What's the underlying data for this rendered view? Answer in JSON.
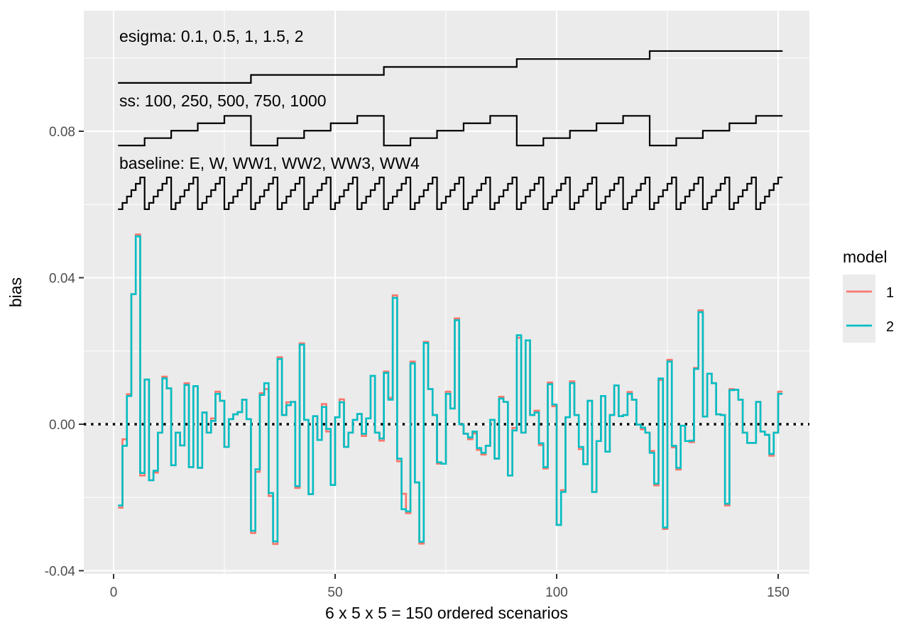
{
  "chart": {
    "panel_bg": "#EBEBEB",
    "grid_color": "#FFFFFF",
    "axis_text_color": "#4D4D4D",
    "tick_mark_color": "#333333",
    "x_axis": {
      "title": "6 x 5 x 5 = 150 ordered scenarios",
      "tick_labels": [
        "0",
        "50",
        "100",
        "150"
      ],
      "tick_values": [
        0,
        50,
        100,
        150
      ],
      "minor_tick_values": [
        25,
        75,
        125
      ]
    },
    "y_axis": {
      "title": "bias",
      "tick_labels": [
        "0.08",
        "0.04",
        "0.00",
        "-0.04"
      ],
      "tick_values": [
        0.08,
        0.04,
        0.0,
        -0.04
      ],
      "minor_tick_values": [
        0.1,
        0.06,
        0.02,
        -0.02
      ]
    },
    "zero_line": {
      "value": 0,
      "style": "dotted",
      "color": "#000000"
    }
  },
  "legend": {
    "title": "model",
    "key_fill": "#EBEBEB",
    "items": [
      {
        "label": "1",
        "color": "#F8766D"
      },
      {
        "label": "2",
        "color": "#00BFC4"
      }
    ]
  },
  "annotations": [
    {
      "label": "esigma: 0.1, 0.5, 1, 1.5, 2",
      "levels": 5,
      "scenarios_per_level": 30,
      "band_min": 0.0932,
      "band_max": 0.1019
    },
    {
      "label": "ss: 100, 250, 500, 750, 1000",
      "levels": 5,
      "scenarios_per_level": 6,
      "band_min": 0.0761,
      "band_max": 0.0842
    },
    {
      "label": "baseline: E, W, WW1, WW2, WW3, WW4",
      "levels": 6,
      "scenarios_per_level": 1,
      "band_min": 0.0587,
      "band_max": 0.0674
    }
  ],
  "chart_data": {
    "type": "line",
    "step": true,
    "title": "",
    "xlabel": "6 x 5 x 5 = 150 ordered scenarios",
    "ylabel": "bias",
    "x_range": [
      1,
      150
    ],
    "ylim": [
      -0.041,
      0.113
    ],
    "grid": true,
    "legend_position": "right",
    "series": [
      {
        "name": "1",
        "color": "#F8766D",
        "base_series": "2",
        "overrides": {
          "1": -0.0228,
          "2": -0.0041,
          "3": 0.0082,
          "5": 0.0518,
          "6": -0.014,
          "9": -0.0132,
          "11": 0.013,
          "16": 0.0112,
          "22": 0.0016,
          "23": 0.0089,
          "31": -0.0297,
          "32": -0.013,
          "33": 0.0085,
          "34": 0.0096,
          "35": -0.0196,
          "36": -0.0327,
          "37": 0.0183,
          "39": 0.006,
          "41": -0.0174,
          "42": 0.0221,
          "47": 0.0055,
          "48": -0.002,
          "51": 0.0068,
          "56": -0.0032,
          "60": -0.0045,
          "61": 0.0144,
          "62": 0.0072,
          "63": 0.0352,
          "64": -0.0101,
          "65": -0.019,
          "66": -0.0243,
          "67": 0.0171,
          "69": -0.0326,
          "70": 0.0225,
          "73": -0.0108,
          "75": 0.0089,
          "77": 0.0289,
          "80": -0.0041,
          "81": -0.0025,
          "82": -0.007,
          "83": -0.0083,
          "87": 0.0075,
          "90": -0.001,
          "91": 0.0236,
          "95": 0.0037,
          "96": -0.0057,
          "97": -0.0121,
          "98": 0.0114,
          "99": 0.0049,
          "101": -0.018,
          "103": 0.0117,
          "105": -0.0068,
          "116": 0.0088,
          "119": -0.0014,
          "121": -0.0073,
          "122": -0.0167,
          "123": 0.0121,
          "124": -0.0286,
          "125": 0.0176,
          "126": -0.0063,
          "127": -0.0124,
          "130": -0.0049,
          "131": 0.0154,
          "132": 0.0311,
          "138": -0.0222,
          "139": 0.0096,
          "148": -0.0086,
          "150": 0.0089
        }
      },
      {
        "name": "2",
        "color": "#00BFC4",
        "values": [
          -0.0222,
          -0.0059,
          0.0077,
          0.0355,
          0.0513,
          -0.0133,
          0.0122,
          -0.0153,
          -0.0127,
          -0.0023,
          0.0125,
          0.0098,
          -0.0112,
          -0.0023,
          -0.0058,
          0.0107,
          -0.0117,
          0.0104,
          -0.0119,
          0.0032,
          -0.0023,
          0.0009,
          0.0083,
          0.0064,
          -0.0062,
          0.0014,
          0.0027,
          0.0033,
          0.0067,
          0.0014,
          -0.0291,
          -0.0123,
          0.008,
          0.0112,
          -0.0188,
          -0.032,
          0.0178,
          0.0025,
          0.0052,
          0.0061,
          -0.0169,
          0.0217,
          0.0012,
          -0.0191,
          0.0022,
          -0.0043,
          0.0047,
          -0.0013,
          -0.0166,
          0.0019,
          0.006,
          -0.0062,
          -0.0023,
          0.0012,
          0.0028,
          -0.0026,
          0.0016,
          0.0132,
          -0.0023,
          -0.0039,
          0.014,
          0.0067,
          0.0345,
          -0.0094,
          -0.0232,
          -0.0238,
          0.0166,
          -0.0159,
          -0.0321,
          0.0222,
          0.0096,
          0.0025,
          -0.0104,
          -0.0108,
          0.0083,
          0.0043,
          0.0284,
          0.0,
          -0.0026,
          -0.0036,
          -0.002,
          -0.0065,
          -0.0078,
          -0.0059,
          0.0012,
          -0.0094,
          0.007,
          0.0061,
          -0.014,
          -0.0017,
          0.0243,
          -0.0023,
          0.0229,
          0.0025,
          0.0032,
          -0.0052,
          -0.0117,
          0.0109,
          0.0054,
          -0.0275,
          -0.0185,
          0.0019,
          0.0112,
          0.0025,
          -0.0062,
          -0.0109,
          0.0064,
          -0.0185,
          -0.0046,
          0.0077,
          -0.0075,
          0.0025,
          0.0106,
          0.0022,
          0.0025,
          0.0083,
          0.0067,
          -0.0001,
          -0.0009,
          -0.0023,
          -0.0078,
          -0.0162,
          0.0125,
          -0.0282,
          0.0171,
          -0.0059,
          -0.0119,
          -0.0004,
          -0.0046,
          -0.0045,
          0.0151,
          0.0306,
          0.0021,
          0.0138,
          0.0112,
          0.0027,
          0.0025,
          -0.0217,
          0.0093,
          0.0094,
          0.0067,
          -0.0023,
          -0.0051,
          -0.0051,
          0.0061,
          -0.002,
          -0.0029,
          -0.0081,
          -0.0023,
          0.0083
        ]
      }
    ]
  }
}
